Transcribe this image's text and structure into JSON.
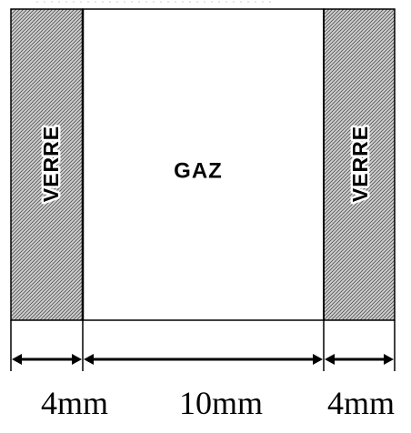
{
  "layers": {
    "left_glass": {
      "label": "VERRE"
    },
    "gas": {
      "label": "GAZ"
    },
    "right_glass": {
      "label": "VERRE"
    }
  },
  "dimensions": {
    "left_glass": "4mm",
    "gas": "10mm",
    "right_glass": "4mm"
  }
}
